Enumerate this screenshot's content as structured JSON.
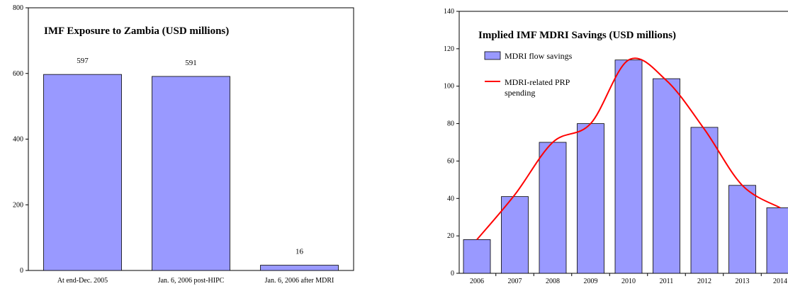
{
  "chart_data": [
    {
      "type": "bar",
      "title": "IMF Exposure to Zambia (USD millions)",
      "xlabel": "",
      "ylabel": "",
      "categories": [
        "At end-Dec. 2005",
        "Jan. 6, 2006 post-HIPC",
        "Jan. 6, 2006 after MDRI"
      ],
      "values": [
        597,
        591,
        16
      ],
      "data_labels": [
        "597",
        "591",
        "16"
      ],
      "ylim": [
        0,
        800
      ],
      "yticks": [
        0,
        200,
        400,
        600,
        800
      ],
      "grid": false,
      "bar_color": "#9999ff"
    },
    {
      "type": "bar",
      "title": "Implied IMF MDRI Savings (USD millions)",
      "xlabel": "",
      "ylabel": "",
      "categories": [
        "2006",
        "2007",
        "2008",
        "2009",
        "2010",
        "2011",
        "2012",
        "2013",
        "2014"
      ],
      "series": [
        {
          "name": "MDRI flow savings",
          "type": "bar",
          "color": "#9999ff",
          "values": [
            18,
            41,
            70,
            80,
            114,
            104,
            78,
            47,
            35
          ]
        },
        {
          "name": "MDRI-related PRP spending",
          "type": "line",
          "color": "#ff0000",
          "values": [
            18,
            42,
            70,
            80,
            114,
            103,
            77,
            47,
            35
          ]
        }
      ],
      "legend_position": "top-left",
      "ylim": [
        0,
        140
      ],
      "yticks": [
        0,
        20,
        40,
        60,
        80,
        100,
        120,
        140
      ],
      "grid": false
    }
  ]
}
